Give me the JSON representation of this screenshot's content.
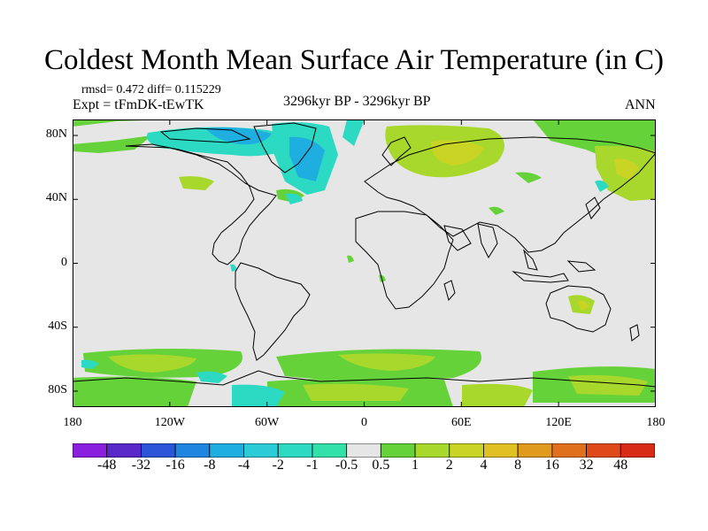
{
  "title": "Coldest Month Mean Surface Air Temperature (in C)",
  "stats": "rmsd= 0.472  diff= 0.115229",
  "experiment": "Expt = tFmDK-tEwTK",
  "period": "3296kyr BP - 3296kyr BP",
  "season": "ANN",
  "lat_labels": [
    "80N",
    "40N",
    "0",
    "40S",
    "80S"
  ],
  "lat_values": [
    80,
    40,
    0,
    -40,
    -80
  ],
  "lon_labels": [
    "180",
    "120W",
    "60W",
    "0",
    "60E",
    "120E",
    "180"
  ],
  "lon_values": [
    -180,
    -120,
    -60,
    0,
    60,
    120,
    180
  ],
  "lat_range": [
    -90,
    90
  ],
  "lon_range": [
    -180,
    180
  ],
  "colorbar": {
    "levels": [
      "-48",
      "-32",
      "-16",
      "-8",
      "-4",
      "-2",
      "-1",
      "-0.5",
      "0.5",
      "1",
      "2",
      "4",
      "8",
      "16",
      "32",
      "48"
    ],
    "colors": [
      "#8a1fe0",
      "#5a28c8",
      "#2a55d8",
      "#1e86e0",
      "#1eaee0",
      "#2ccbd8",
      "#2cd9c2",
      "#32e0aa",
      "#e6e6e6",
      "#66d23a",
      "#a8d82c",
      "#cad424",
      "#e0c022",
      "#e09a1e",
      "#e0701c",
      "#e04a18",
      "#d82c14"
    ]
  },
  "colors": {
    "background_field": "#e6e6e6",
    "coastline": "#000000"
  }
}
